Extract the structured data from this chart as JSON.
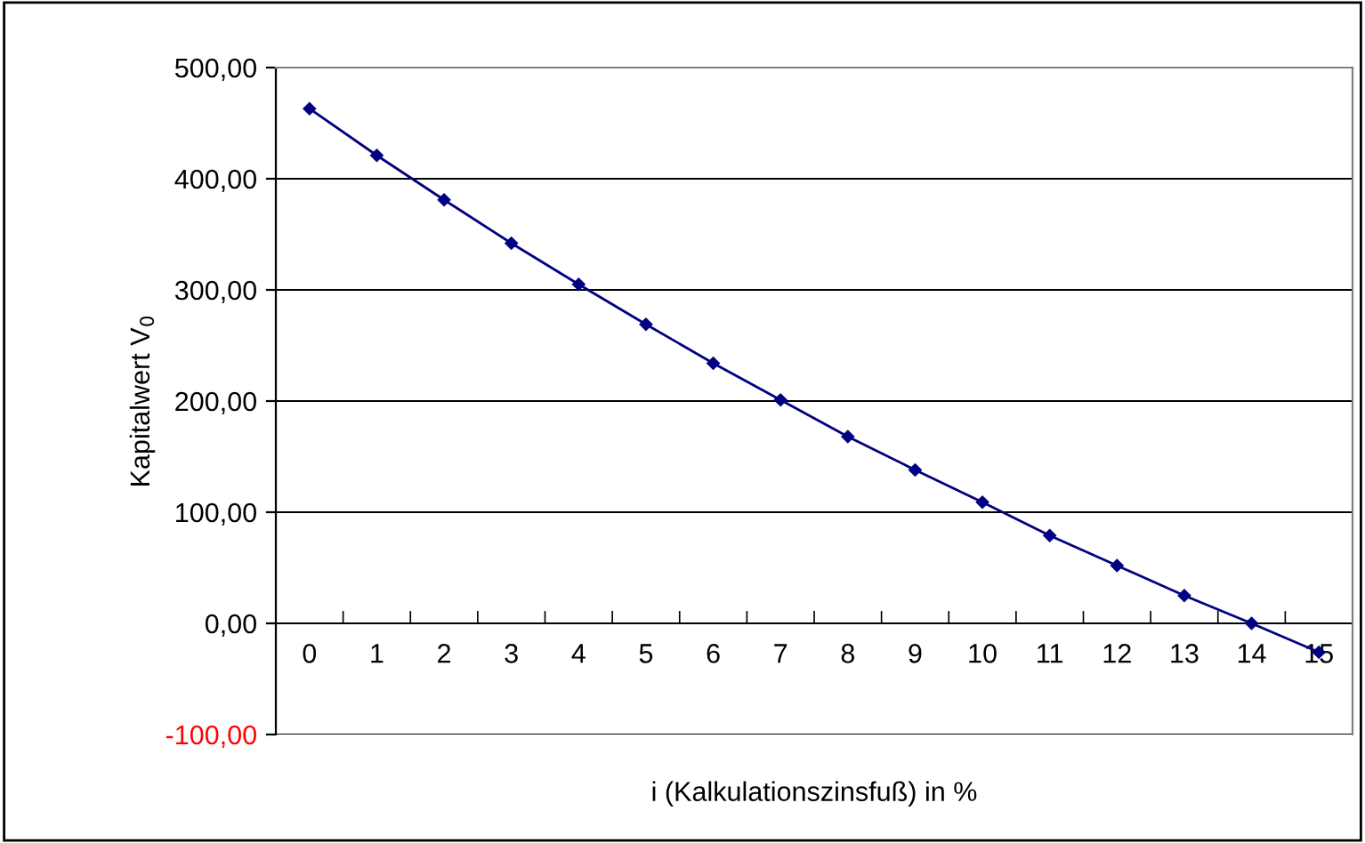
{
  "chart_data": {
    "type": "line",
    "xlabel": "i (Kalkulationszinsfuß) in %",
    "ylabel": "Kapitalwert V$_{0}$",
    "categories": [
      "0",
      "1",
      "2",
      "3",
      "4",
      "5",
      "6",
      "7",
      "8",
      "9",
      "10",
      "11",
      "12",
      "13",
      "14",
      "15"
    ],
    "series": [
      {
        "color": "#000080",
        "values": [
          463,
          421,
          381,
          342,
          305,
          269,
          234,
          201,
          168,
          138,
          109,
          79,
          52,
          25,
          0,
          -26
        ]
      }
    ],
    "ylim": [
      -100,
      500
    ],
    "yticks": [
      {
        "value": -100,
        "label": "-100,00"
      },
      {
        "value": 0,
        "label": "0,00"
      },
      {
        "value": 100,
        "label": "100,00"
      },
      {
        "value": 200,
        "label": "200,00"
      },
      {
        "value": 300,
        "label": "300,00"
      },
      {
        "value": 400,
        "label": "400,00"
      },
      {
        "value": 500,
        "label": "500,00"
      }
    ],
    "grid": "y",
    "marker": "diamond",
    "line_style": "solid"
  }
}
